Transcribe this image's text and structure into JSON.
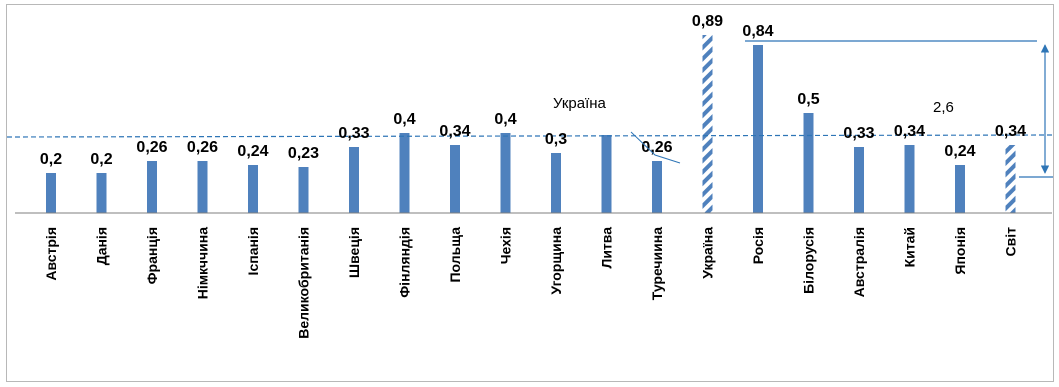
{
  "chart_data": {
    "type": "bar",
    "categories": [
      "Австрія",
      "Данія",
      "Франція",
      "Німкччина",
      "Іспанія",
      "Великобританія",
      "Швеція",
      "Фінляндія",
      "Польща",
      "Чехія",
      "Угорщина",
      "Литва",
      "Туречиина",
      "Україна",
      "Росія",
      "Білорусія",
      "Австралія",
      "Китай",
      "Японія",
      "Світ"
    ],
    "values": [
      0.2,
      0.2,
      0.26,
      0.26,
      0.24,
      0.23,
      0.33,
      0.4,
      0.34,
      0.4,
      0.3,
      0.39,
      0.26,
      0.89,
      0.84,
      0.5,
      0.33,
      0.34,
      0.24,
      0.34
    ],
    "value_labels": [
      "0,2",
      "0,2",
      "0,26",
      "0,26",
      "0,24",
      "0,23",
      "0,33",
      "0,4",
      "0,34",
      "0,4",
      "0,3",
      "",
      "0,26",
      "0,89",
      "0,84",
      "0,5",
      "0,33",
      "0,34",
      "0,24",
      "0,34"
    ],
    "highlighted": [
      "Україна",
      "Світ"
    ],
    "reference_line_value": 0.34,
    "annotations": {
      "ukraine_label": "Україна",
      "ratio_label": "2,6"
    },
    "colors": {
      "bar": "#4f81bd",
      "reference_line": "#2e75b6",
      "axis": "#7f7f7f"
    },
    "ylim": [
      0,
      0.9
    ],
    "grid": false,
    "legend": "none"
  }
}
